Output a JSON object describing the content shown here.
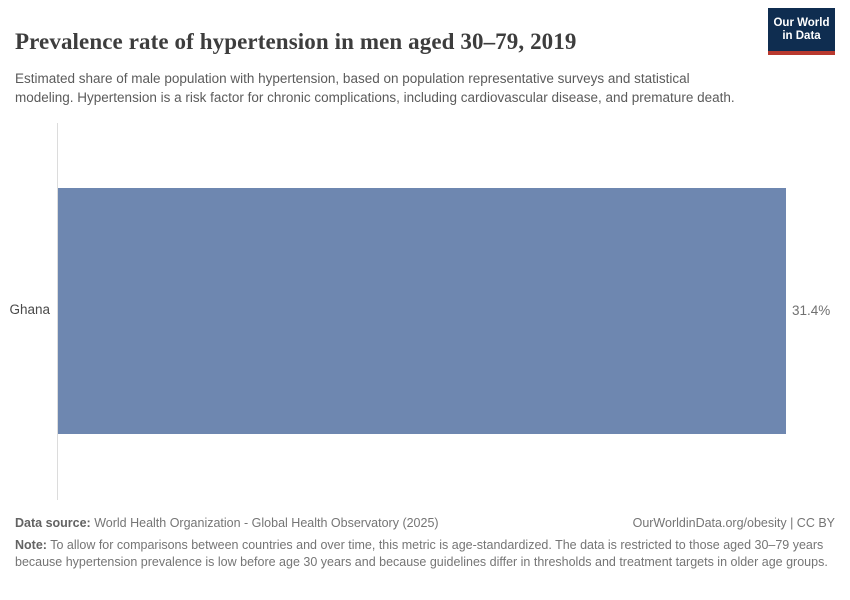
{
  "header": {
    "title": "Prevalence rate of hypertension in men aged 30–79, 2019",
    "subtitle": "Estimated share of male population with hypertension, based on population representative surveys and statistical modeling. Hypertension is a risk factor for chronic complications, including cardiovascular disease, and premature death.",
    "logo": {
      "line1": "Our World",
      "line2": "in Data"
    }
  },
  "chart_data": {
    "type": "bar",
    "orientation": "horizontal",
    "title": "Prevalence rate of hypertension in men aged 30–79, 2019",
    "categories": [
      "Ghana"
    ],
    "values": [
      31.4
    ],
    "value_labels": [
      "31.4%"
    ],
    "unit": "%",
    "xlim": [
      0,
      31.4
    ],
    "grid": false,
    "legend": false,
    "bar_color": "#6e87b0",
    "axis_color": "#dcdcdc"
  },
  "footer": {
    "data_source_label": "Data source:",
    "data_source_text": " World Health Organization - Global Health Observatory (2025)",
    "attribution": "OurWorldinData.org/obesity | CC BY",
    "note_label": "Note:",
    "note_text": " To allow for comparisons between countries and over time, this metric is age-standardized. The data is restricted to those aged 30–79 years because hypertension prevalence is low before age 30 years and because guidelines differ in thresholds and treatment targets in older age groups."
  },
  "colors": {
    "bar": "#6e87b0",
    "logo_navy": "#0f2d50",
    "logo_red": "#b9392f",
    "title_text": "#3d3d3d",
    "body_text": "#5b5b5b",
    "footer_text": "#757575"
  }
}
